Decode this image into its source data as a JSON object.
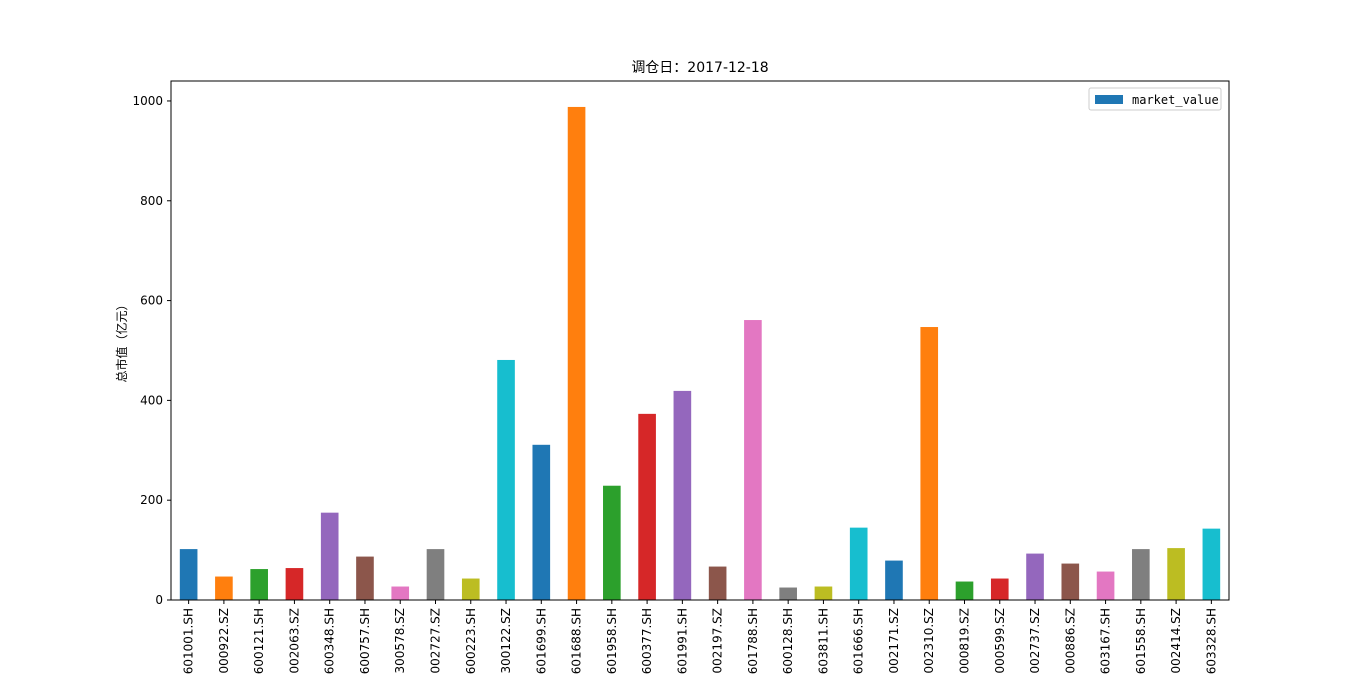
{
  "chart_data": {
    "type": "bar",
    "title": "调仓日：2017-12-18",
    "xlabel": "",
    "ylabel": "总市值（亿元）",
    "ylim": [
      0,
      1040
    ],
    "yticks": [
      0,
      200,
      400,
      600,
      800,
      1000
    ],
    "grid": false,
    "legend": {
      "placement": "top-right",
      "entries": [
        "market_value"
      ]
    },
    "series": [
      {
        "name": "market_value",
        "values": [
          102,
          47,
          62,
          64,
          175,
          87,
          27,
          102,
          43,
          481,
          311,
          988,
          229,
          373,
          419,
          67,
          561,
          25,
          27,
          145,
          79,
          547,
          37,
          43,
          93,
          73,
          57,
          102,
          104,
          143
        ]
      }
    ],
    "categories": [
      "601001.SH",
      "000922.SZ",
      "600121.SH",
      "002063.SZ",
      "600348.SH",
      "600757.SH",
      "300578.SZ",
      "002727.SZ",
      "600223.SH",
      "300122.SZ",
      "601699.SH",
      "601688.SH",
      "601958.SH",
      "600377.SH",
      "601991.SH",
      "002197.SZ",
      "601788.SH",
      "600128.SH",
      "603811.SH",
      "601666.SH",
      "002171.SZ",
      "002310.SZ",
      "000819.SZ",
      "000599.SZ",
      "002737.SZ",
      "000886.SZ",
      "603167.SH",
      "601558.SH",
      "002414.SZ",
      "603328.SH"
    ],
    "colors": [
      "#1f77b4",
      "#ff7f0e",
      "#2ca02c",
      "#d62728",
      "#9467bd",
      "#8c564b",
      "#e377c2",
      "#7f7f7f",
      "#bcbd22",
      "#17becf"
    ],
    "legend_color": "#1f77b4"
  }
}
